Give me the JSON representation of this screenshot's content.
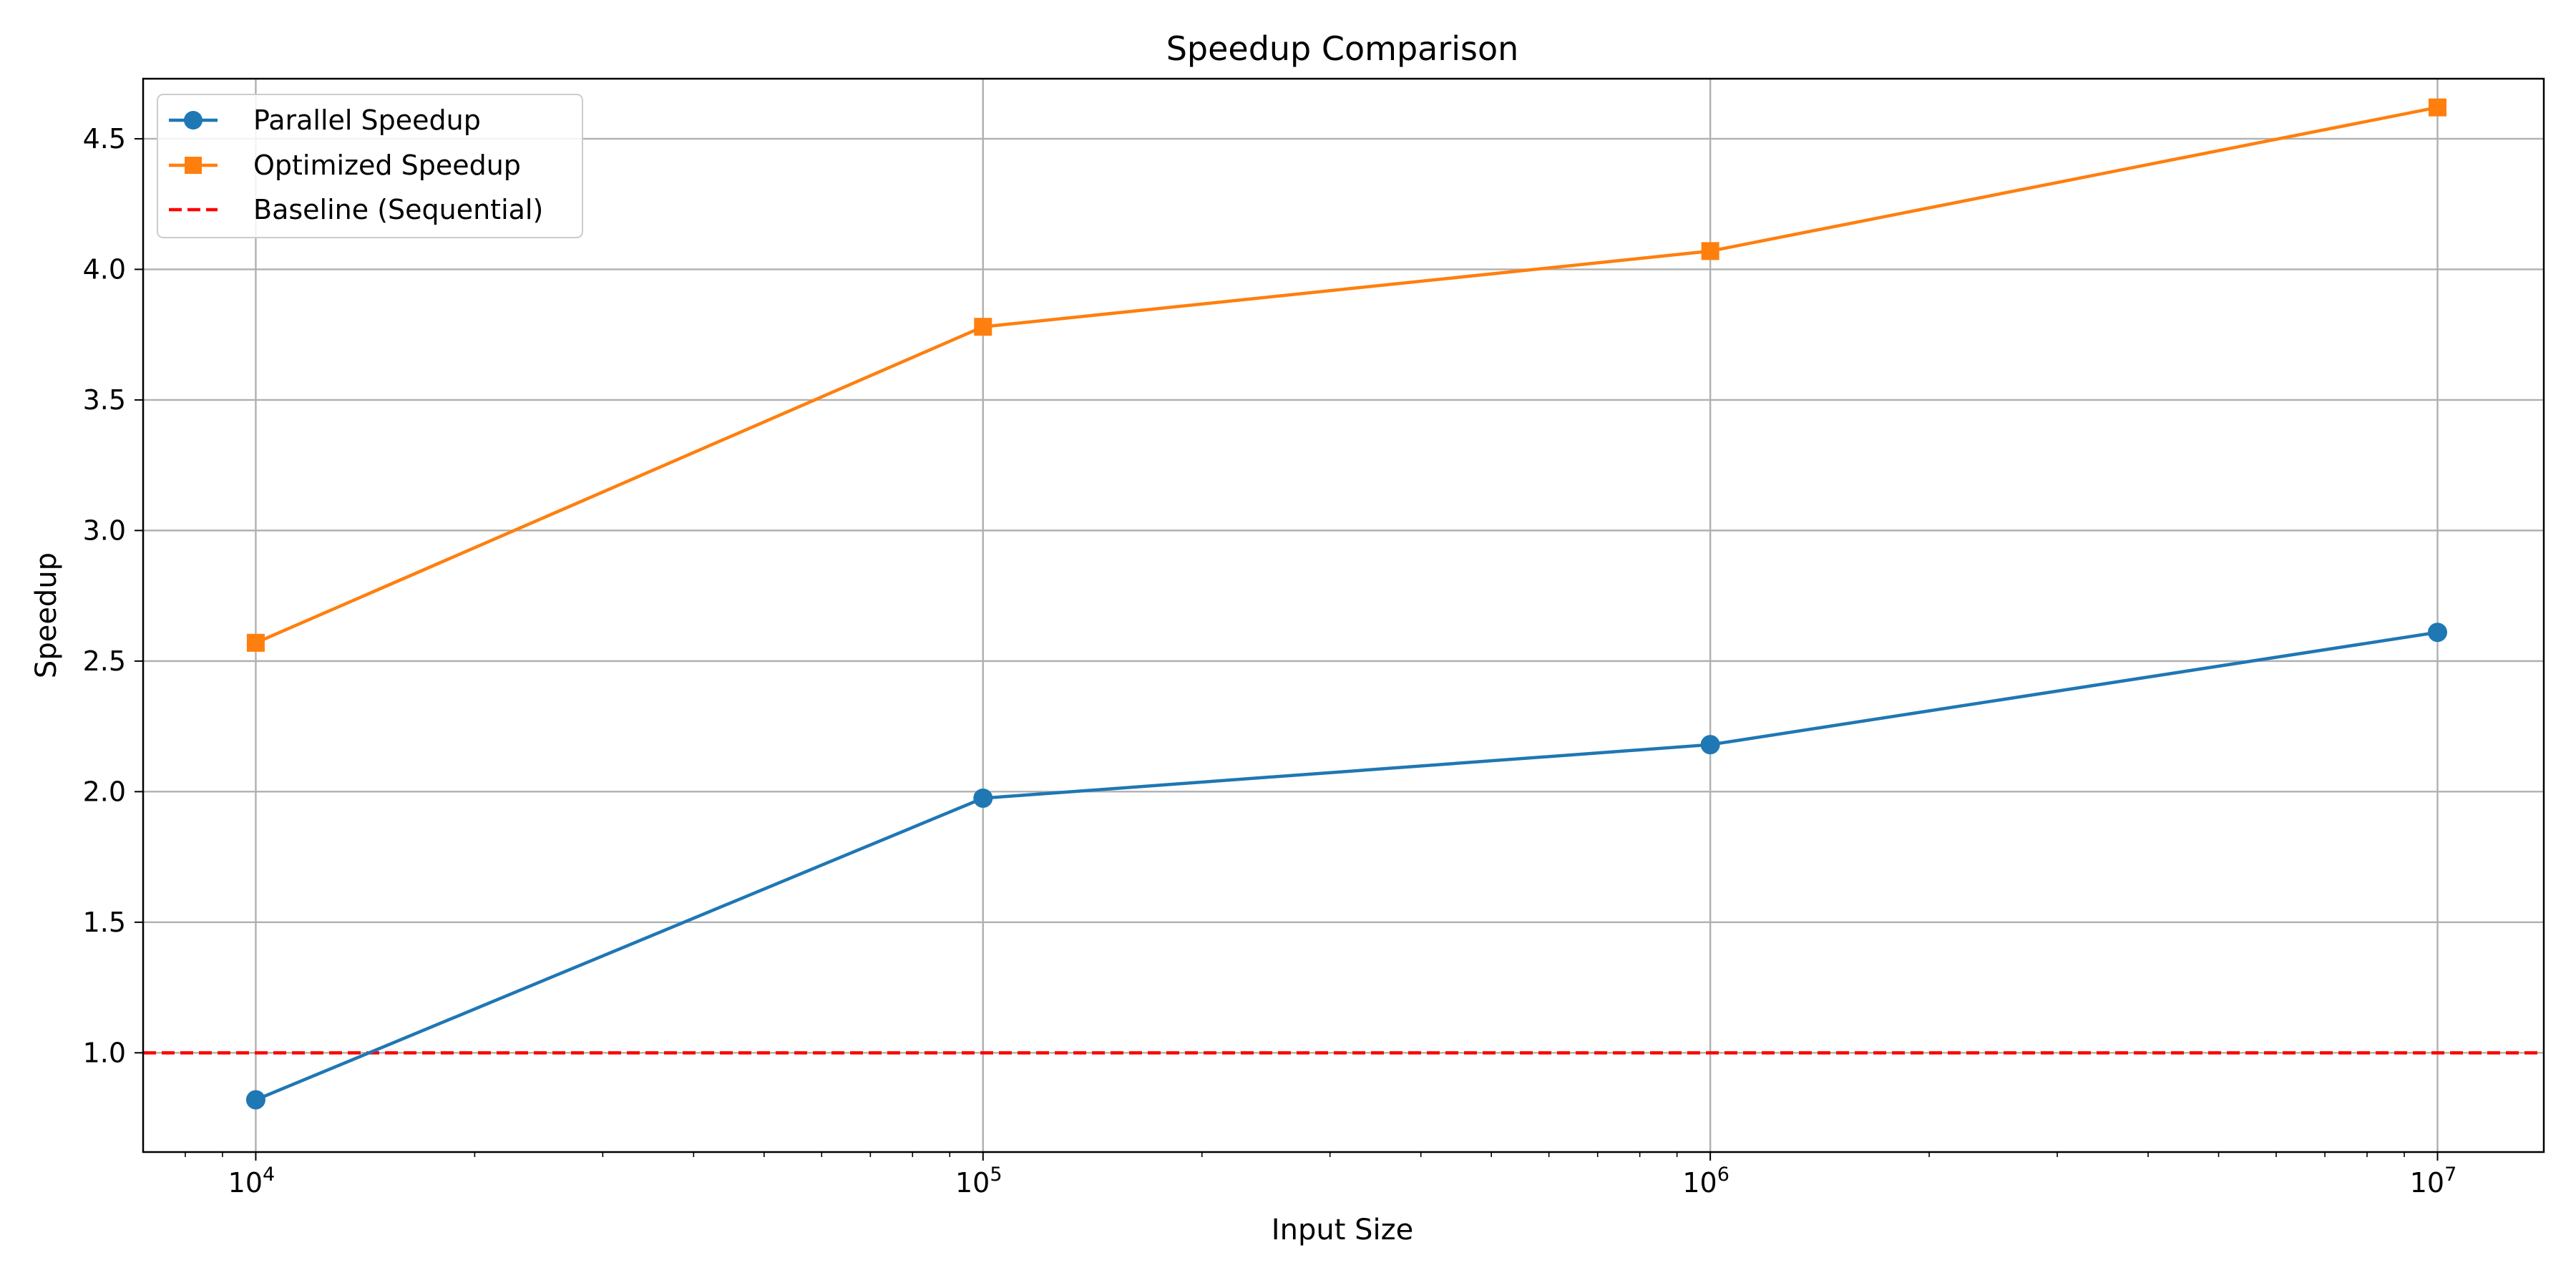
{
  "chart_data": {
    "type": "line",
    "title": "Speedup Comparison",
    "xlabel": "Input Size",
    "ylabel": "Speedup",
    "xscale": "log",
    "xlim": [
      7000,
      14000000
    ],
    "ylim": [
      0.62,
      4.73
    ],
    "x": [
      10000,
      100000,
      1000000,
      10000000
    ],
    "x_ticks": [
      {
        "value": 10000,
        "base": "10",
        "exp": "4"
      },
      {
        "value": 100000,
        "base": "10",
        "exp": "5"
      },
      {
        "value": 1000000,
        "base": "10",
        "exp": "6"
      },
      {
        "value": 10000000,
        "base": "10",
        "exp": "7"
      }
    ],
    "y_ticks": [
      {
        "value": 1.0,
        "label": "1.0"
      },
      {
        "value": 1.5,
        "label": "1.5"
      },
      {
        "value": 2.0,
        "label": "2.0"
      },
      {
        "value": 2.5,
        "label": "2.5"
      },
      {
        "value": 3.0,
        "label": "3.0"
      },
      {
        "value": 3.5,
        "label": "3.5"
      },
      {
        "value": 4.0,
        "label": "4.0"
      },
      {
        "value": 4.5,
        "label": "4.5"
      }
    ],
    "series": [
      {
        "name": "Parallel Speedup",
        "marker": "circle",
        "color": "#1f77b4",
        "values": [
          0.82,
          1.975,
          2.18,
          2.61
        ]
      },
      {
        "name": "Optimized Speedup",
        "marker": "square",
        "color": "#ff7f0e",
        "values": [
          2.57,
          3.78,
          4.07,
          4.62
        ]
      }
    ],
    "reference_lines": [
      {
        "name": "Baseline (Sequential)",
        "y": 1.0,
        "color": "#ff0000",
        "style": "dashed"
      }
    ],
    "grid": true,
    "legend": "top-left"
  }
}
